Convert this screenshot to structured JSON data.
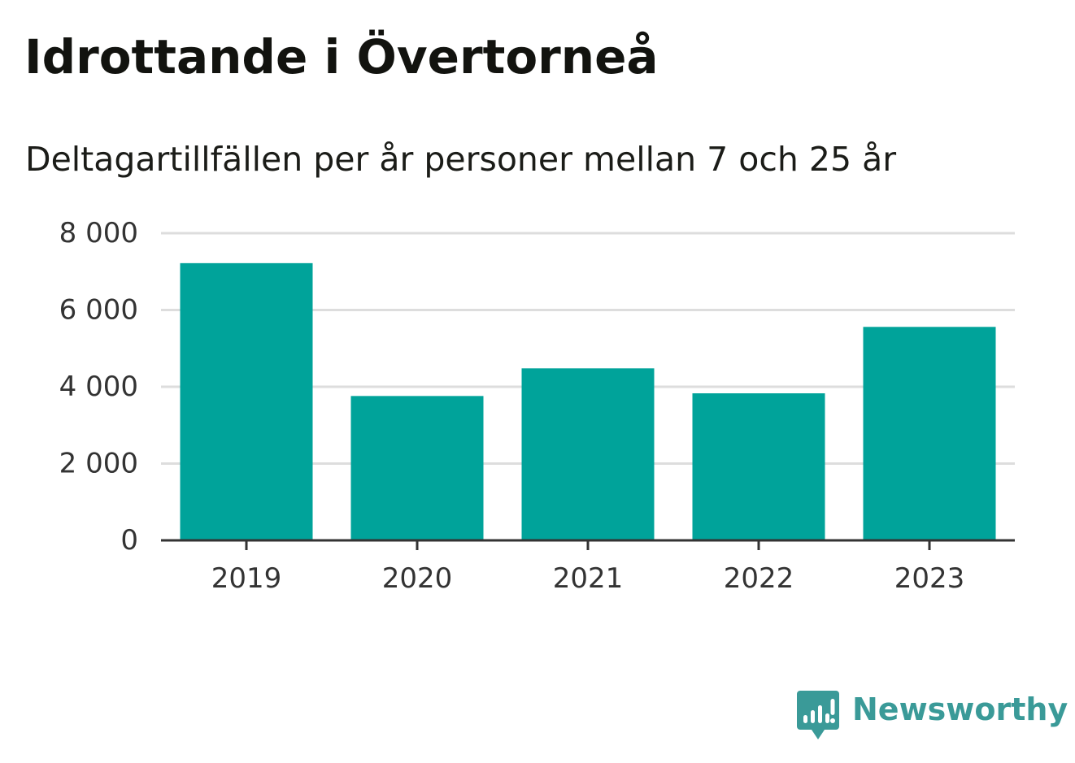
{
  "header": {
    "title": "Idrottande i Övertorneå",
    "subtitle": "Deltagartillfällen per år personer mellan 7 och 25 år"
  },
  "chart_data": {
    "type": "bar",
    "title": "Idrottande i Övertorneå",
    "subtitle": "Deltagartillfällen per år personer mellan 7 och 25 år",
    "categories": [
      "2019",
      "2020",
      "2021",
      "2022",
      "2023"
    ],
    "values": [
      7220,
      3760,
      4480,
      3830,
      5560
    ],
    "xlabel": "",
    "ylabel": "",
    "ylim": [
      0,
      8000
    ],
    "yticks": [
      0,
      2000,
      4000,
      6000,
      8000
    ],
    "ytick_labels": [
      "0",
      "2 000",
      "4 000",
      "6 000",
      "8 000"
    ],
    "grid": true,
    "bar_color": "#00a39a",
    "grid_color": "#dddddd",
    "axis_color": "#333333"
  },
  "brand": {
    "name": "Newsworthy",
    "icon": "newsworthy-logo-icon",
    "color": "#3a9a98"
  }
}
